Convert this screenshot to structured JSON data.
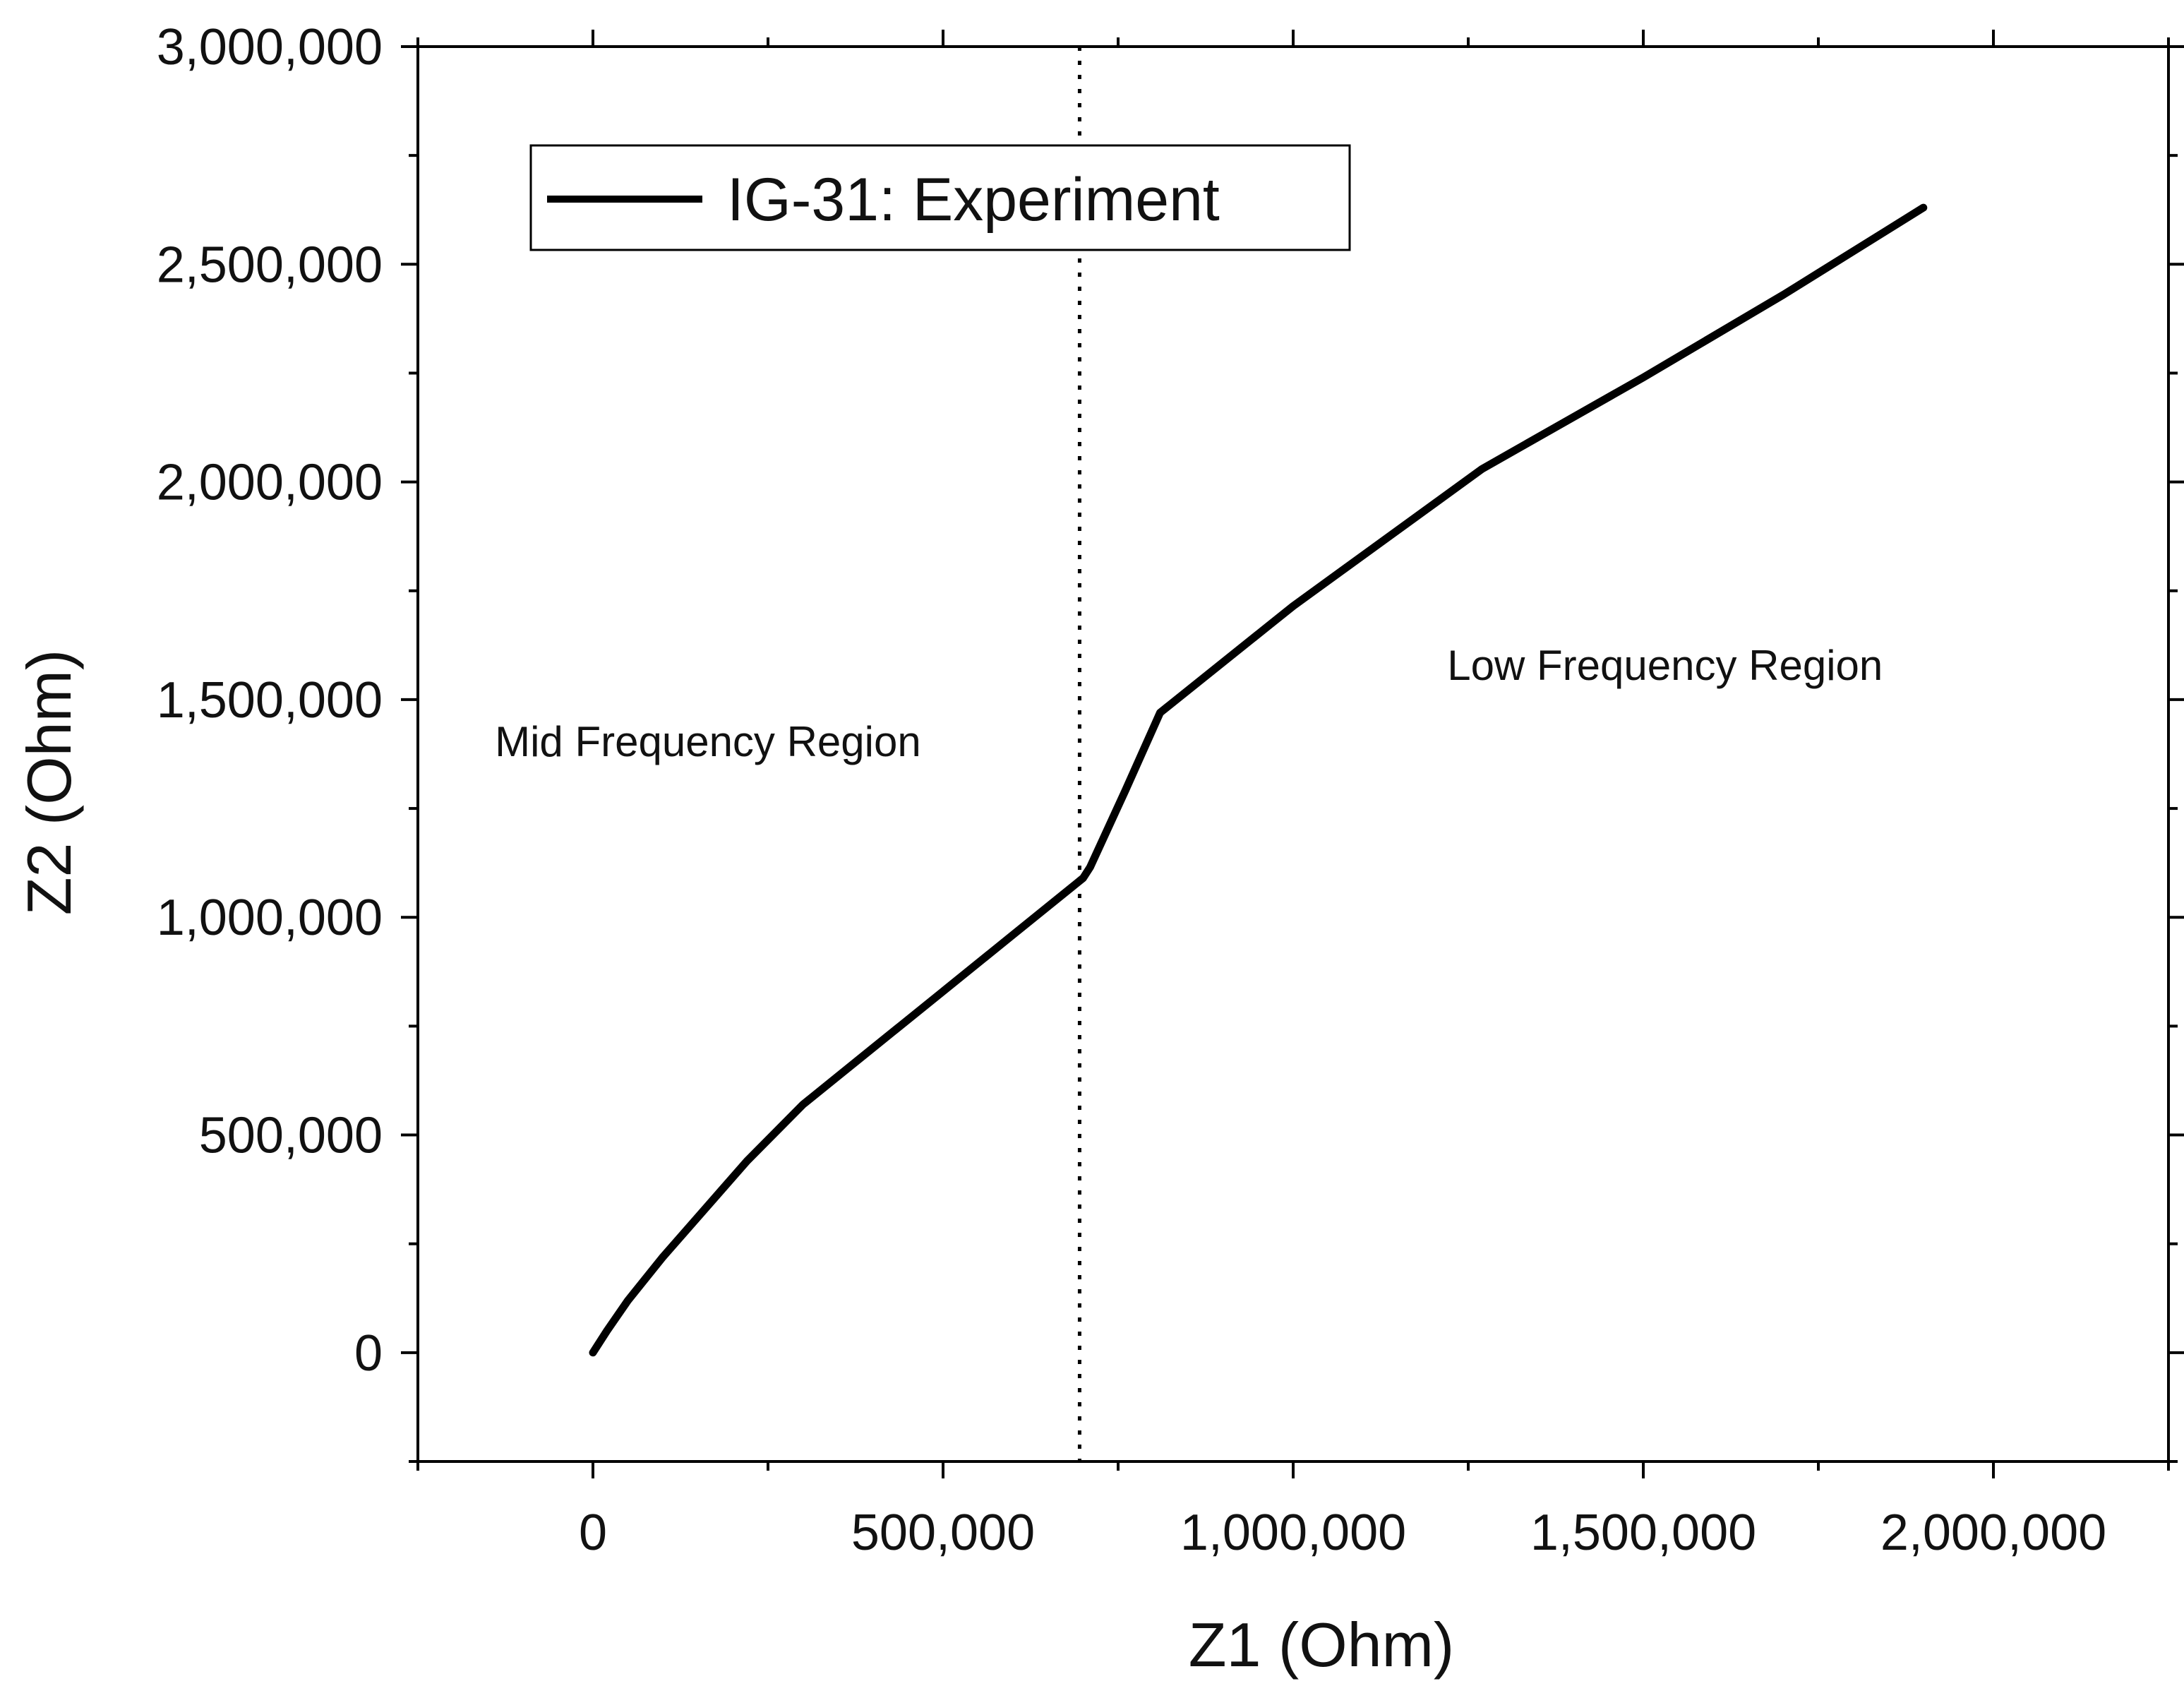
{
  "chart_data": {
    "type": "line",
    "title": "",
    "xlabel": "Z1 (Ohm)",
    "ylabel": "Z2 (Ohm)",
    "xlim": [
      -250000,
      2250000
    ],
    "ylim": [
      -250000,
      3000000
    ],
    "x_ticks": [
      0,
      500000,
      1000000,
      1500000,
      2000000
    ],
    "x_tick_labels": [
      "0",
      "500,000",
      "1,000,000",
      "1,500,000",
      "2,000,000"
    ],
    "y_ticks": [
      0,
      500000,
      1000000,
      1500000,
      2000000,
      2500000,
      3000000
    ],
    "y_tick_labels": [
      "0",
      "500,000",
      "1,000,000",
      "1,500,000",
      "2,000,000",
      "2,500,000",
      "3,000,000"
    ],
    "grid": false,
    "legend": {
      "position": "top-left",
      "entries": [
        "IG-31: Experiment"
      ]
    },
    "series": [
      {
        "name": "IG-31: Experiment",
        "color": "#000000",
        "x": [
          0,
          20000,
          50000,
          100000,
          160000,
          220000,
          300000,
          400000,
          500000,
          600000,
          700000,
          710000,
          760000,
          810000,
          1000000,
          1270000,
          1500000,
          1700000,
          1900000
        ],
        "y": [
          0,
          50000,
          120000,
          220000,
          330000,
          440000,
          570000,
          700000,
          830000,
          960000,
          1090000,
          1115000,
          1290000,
          1470000,
          1715000,
          2030000,
          2240000,
          2430000,
          2630000
        ]
      }
    ],
    "reference_lines": [
      {
        "orientation": "vertical",
        "x": 695000,
        "style": "dotted"
      }
    ],
    "annotations": [
      {
        "text": "Mid Frequency Region",
        "x": -140000,
        "y": 1370000
      },
      {
        "text": "Low Frequency Region",
        "x": 1220000,
        "y": 1545000
      }
    ]
  }
}
